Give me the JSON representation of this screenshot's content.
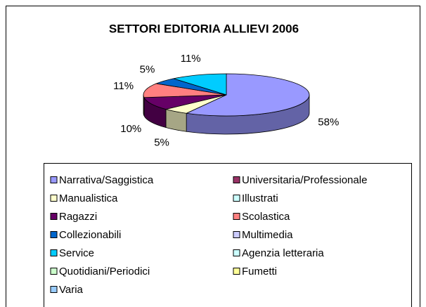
{
  "chart_data": {
    "type": "pie3d",
    "title": "SETTORI EDITORIA ALLIEVI 2006",
    "categories": [
      "Narrativa/Saggistica",
      "Universitaria/Professionale",
      "Manualistica",
      "Illustrati",
      "Ragazzi",
      "Scolastica",
      "Collezionabili",
      "Multimedia",
      "Service",
      "Agenzia letteraria",
      "Quotidiani/Periodici",
      "Fumetti",
      "Varia"
    ],
    "values": [
      58,
      0,
      5,
      0,
      10,
      11,
      5,
      0,
      11,
      0,
      0,
      0,
      0
    ],
    "value_labels": [
      "58%",
      null,
      "5%",
      null,
      "10%",
      "11%",
      "5%",
      null,
      "11%",
      null,
      null,
      null,
      null
    ],
    "colors": [
      "#9999FF",
      "#993366",
      "#FFFFCC",
      "#CCFFFF",
      "#660066",
      "#FF8080",
      "#0066CC",
      "#CCCCFF",
      "#00CCFF",
      "#CCFFFF",
      "#CCFFCC",
      "#FFFF99",
      "#99CCFF"
    ],
    "legend": "bottom"
  }
}
